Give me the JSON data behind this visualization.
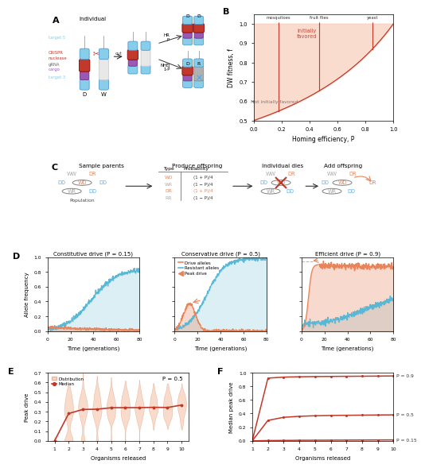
{
  "panel_B": {
    "xlabel": "Homing efficiency, P",
    "ylabel": "DW fitness, f",
    "xlim": [
      0,
      1
    ],
    "ylim": [
      0.5,
      1.05
    ],
    "fill_color": "#f7c5b0",
    "line_color": "#c0392b",
    "species_P": [
      0.18,
      0.47,
      0.85
    ],
    "species_names": [
      "mosquitoes",
      "fruit flies",
      "yeast"
    ]
  },
  "panel_D": {
    "xlim": [
      0,
      80
    ],
    "ylim": [
      0,
      1
    ],
    "xlabel": "Time (generations)",
    "ylabel": "Allele frequency",
    "drive_color": "#e8845a",
    "resistant_color": "#5bb8d4",
    "fill_drive": "#f5c8b0",
    "fill_resistant": "#c8e8f5",
    "titles": [
      "Constitutive drive (P = 0.15)",
      "Conservative drive (P = 0.5)",
      "Efficient drive (P = 0.9)"
    ]
  },
  "panel_E": {
    "xlabel": "Organisms released",
    "ylabel": "Peak drive",
    "ylim": [
      0,
      0.7
    ],
    "title_text": "P = 0.5",
    "violin_color": "#f5c8b0",
    "median_color": "#c0392b"
  },
  "panel_F": {
    "xlabel": "Organisms released",
    "ylabel": "Median peak drive",
    "ylim": [
      0,
      1
    ],
    "p_labels": [
      "P = 0.9",
      "P = 0.5",
      "P = 0.15"
    ],
    "line_color": "#c0392b"
  },
  "colors": {
    "blue_chr": "#87ceeb",
    "blue_chr_edge": "#5599cc",
    "red_chr": "#c0392b",
    "red_chr_edge": "#8b0000",
    "purple_chr": "#9b59b6",
    "purple_chr_edge": "#6c3483",
    "gray_chr": "#b0b0b0",
    "gray_chr_edge": "#888888",
    "text_blue": "#87ceeb",
    "text_red": "#c0392b",
    "text_purple": "#9b59b6",
    "text_gray": "#aaaaaa",
    "text_orange": "#e8845a",
    "text_teal": "#5aace8"
  }
}
